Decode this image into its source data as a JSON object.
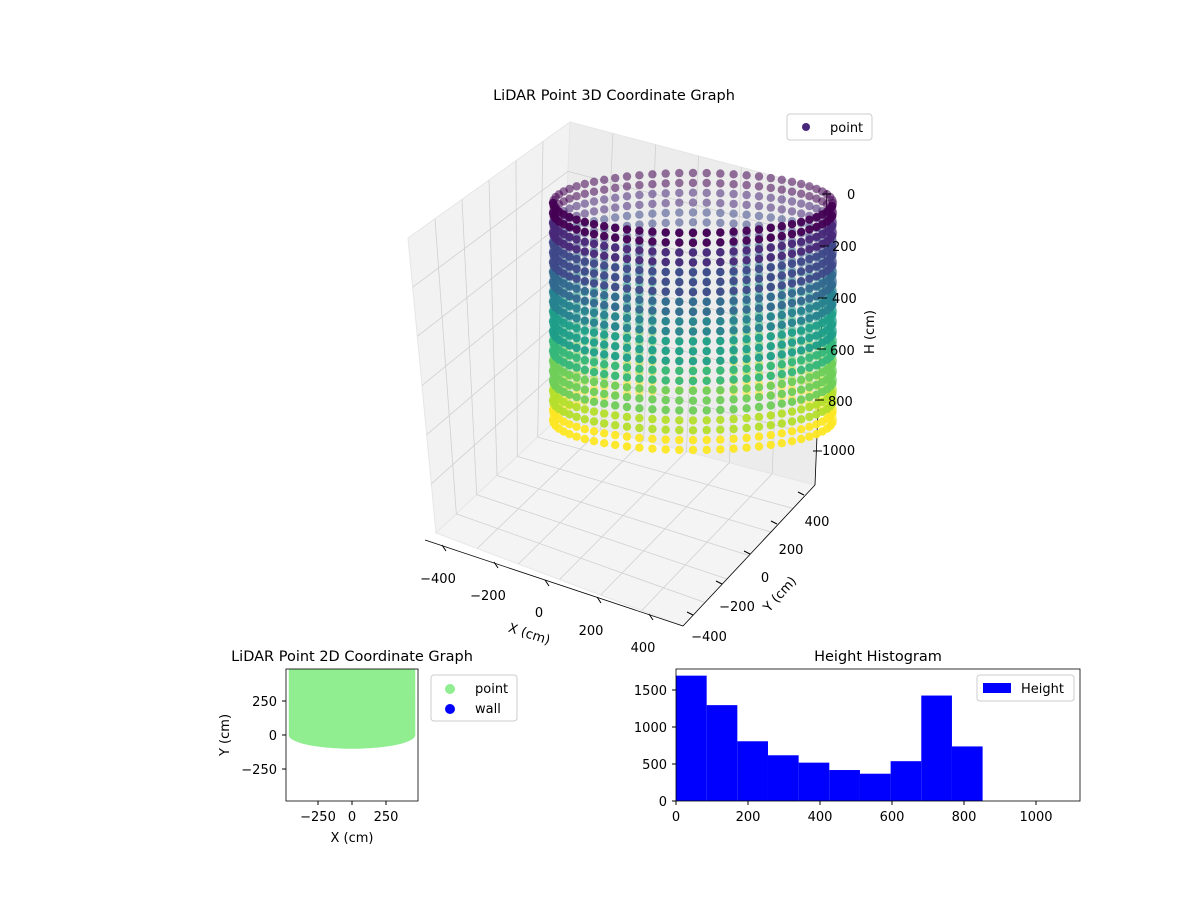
{
  "colors": {
    "viridis": [
      "#440154",
      "#482878",
      "#3e4989",
      "#31688e",
      "#26828e",
      "#1f9e89",
      "#35b779",
      "#6ece58",
      "#b5de2b",
      "#fde725"
    ],
    "point_2d": "#90ee90",
    "wall_2d": "#0000ff",
    "histogram_bar": "#0000ff",
    "pane": "#f2f2f2",
    "grid": "#d0d0d0"
  },
  "chart_data": [
    {
      "type": "scatter",
      "projection": "3d",
      "title": "LiDAR Point 3D Coordinate Graph",
      "xlabel": "X (cm)",
      "ylabel": "Y (cm)",
      "zlabel": "H (cm)",
      "x_ticks": [
        "−400",
        "−200",
        "0",
        "200",
        "400"
      ],
      "y_ticks": [
        "−400",
        "−200",
        "0",
        "200",
        "400"
      ],
      "z_ticks": [
        "0",
        "200",
        "400",
        "600",
        "800",
        "1000"
      ],
      "xlim": [
        -480,
        480
      ],
      "ylim": [
        -480,
        480
      ],
      "zlim": [
        0,
        1100
      ],
      "z_inverted": true,
      "legend": {
        "position": "upper right",
        "entries": [
          "point"
        ]
      },
      "colormap": "viridis",
      "structure": {
        "shape": "cylindrical wall of points",
        "radius": 460,
        "height_range": [
          0,
          850
        ]
      }
    },
    {
      "type": "scatter",
      "title": "LiDAR Point 2D Coordinate Graph",
      "xlabel": "X (cm)",
      "ylabel": "Y (cm)",
      "x_ticks": [
        "−250",
        "0",
        "250"
      ],
      "y_ticks": [
        "250",
        "0",
        "−250"
      ],
      "xlim": [
        -480,
        480
      ],
      "ylim": [
        -480,
        480
      ],
      "legend": {
        "position": "outside right",
        "entries": [
          "point",
          "wall"
        ]
      },
      "series": [
        {
          "name": "point",
          "region": "filled half-disc, radius ≈ 460, y from ≈ −100 to 480"
        },
        {
          "name": "wall",
          "points": []
        }
      ]
    },
    {
      "type": "bar",
      "title": "Height Histogram",
      "xlabel": "",
      "ylabel": "",
      "x_ticks": [
        "0",
        "200",
        "400",
        "600",
        "800",
        "1000"
      ],
      "y_ticks": [
        "0",
        "500",
        "1000",
        "1500"
      ],
      "xlim": [
        0,
        1120
      ],
      "ylim": [
        0,
        1790
      ],
      "legend": {
        "position": "upper right",
        "entries": [
          "Height"
        ]
      },
      "bin_edges": [
        0,
        85,
        170,
        255,
        340,
        425,
        510,
        595,
        680,
        765,
        850
      ],
      "series": [
        {
          "name": "Height",
          "values": [
            1700,
            1300,
            810,
            620,
            520,
            420,
            370,
            540,
            1430,
            740
          ]
        }
      ]
    }
  ]
}
